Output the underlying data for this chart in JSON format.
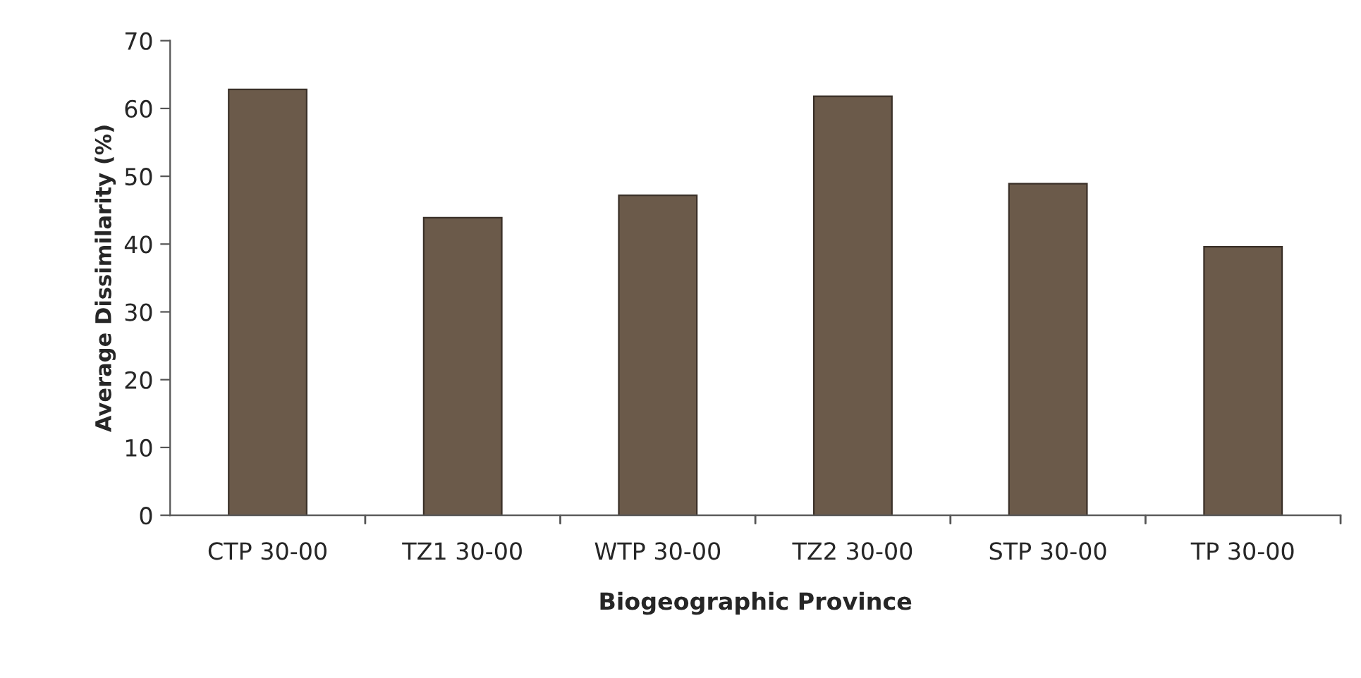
{
  "chart_data": {
    "type": "bar",
    "xlabel": "Biogeographic Province",
    "ylabel": "Average Dissimilarity (%)",
    "categories": [
      "CTP 30-00",
      "TZ1 30-00",
      "WTP 30-00",
      "TZ2 30-00",
      "STP 30-00",
      "TP 30-00"
    ],
    "values": [
      62.8,
      43.9,
      47.2,
      61.8,
      48.9,
      39.6
    ],
    "color": "#6b5a4a",
    "ylim": [
      0,
      70
    ],
    "yticks": [
      0,
      10,
      20,
      30,
      40,
      50,
      60,
      70
    ],
    "grid": false,
    "legend": false
  }
}
